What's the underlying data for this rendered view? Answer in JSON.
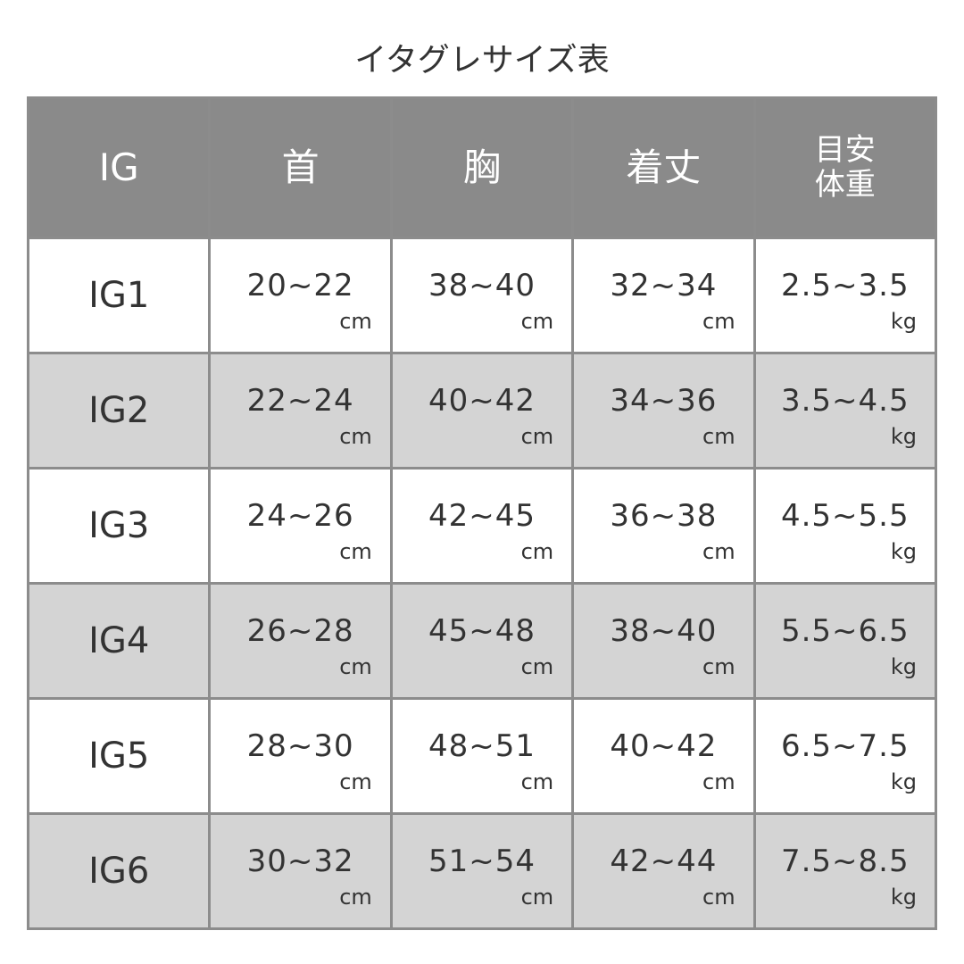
{
  "title": "イタグレサイズ表",
  "colors": {
    "header_bg": "#8a8a8a",
    "alt_row_bg": "#d4d4d4",
    "border": "#8c8c8c"
  },
  "headers": [
    "IG",
    "首",
    "胸",
    "着丈",
    "目安\n体重"
  ],
  "header_weight_line1": "目安",
  "header_weight_line2": "体重",
  "rows": [
    {
      "size": "IG1",
      "neck": "20~22",
      "chest": "38~40",
      "length": "32~34",
      "weight": "2.5~3.5"
    },
    {
      "size": "IG2",
      "neck": "22~24",
      "chest": "40~42",
      "length": "34~36",
      "weight": "3.5~4.5"
    },
    {
      "size": "IG3",
      "neck": "24~26",
      "chest": "42~45",
      "length": "36~38",
      "weight": "4.5~5.5"
    },
    {
      "size": "IG4",
      "neck": "26~28",
      "chest": "45~48",
      "length": "38~40",
      "weight": "5.5~6.5"
    },
    {
      "size": "IG5",
      "neck": "28~30",
      "chest": "48~51",
      "length": "40~42",
      "weight": "6.5~7.5"
    },
    {
      "size": "IG6",
      "neck": "30~32",
      "chest": "51~54",
      "length": "42~44",
      "weight": "7.5~8.5"
    }
  ],
  "units": {
    "cm": "cm",
    "kg": "kg"
  }
}
